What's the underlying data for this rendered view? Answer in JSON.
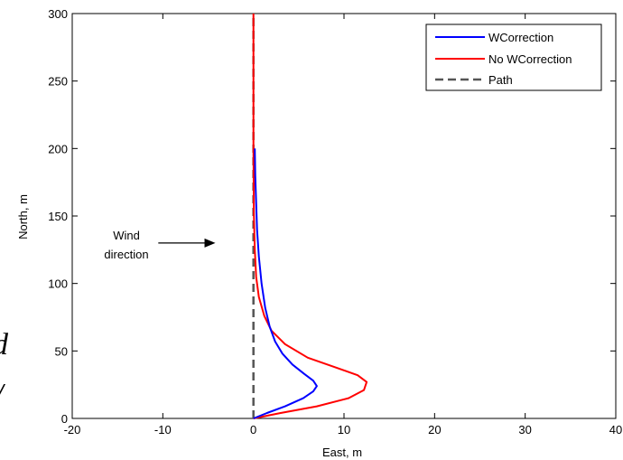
{
  "chart_data": {
    "type": "line",
    "title": "",
    "xlabel": "East, m",
    "ylabel": "North, m",
    "xlim": [
      -20,
      40
    ],
    "ylim": [
      0,
      300
    ],
    "x_ticks": [
      -20,
      -10,
      0,
      10,
      20,
      30,
      40
    ],
    "y_ticks": [
      0,
      50,
      100,
      150,
      200,
      250,
      300
    ],
    "grid": false,
    "legend_position": "top-right",
    "series": [
      {
        "name": "WCorrection",
        "color": "#0000ff",
        "style": "solid",
        "points": [
          [
            0,
            0
          ],
          [
            1.5,
            4
          ],
          [
            3.5,
            9
          ],
          [
            5.5,
            15
          ],
          [
            6.6,
            20
          ],
          [
            7.0,
            24
          ],
          [
            6.6,
            28
          ],
          [
            5.6,
            33
          ],
          [
            4.3,
            40
          ],
          [
            3.2,
            48
          ],
          [
            2.4,
            57
          ],
          [
            1.8,
            68
          ],
          [
            1.3,
            82
          ],
          [
            0.9,
            100
          ],
          [
            0.6,
            120
          ],
          [
            0.4,
            140
          ],
          [
            0.3,
            160
          ],
          [
            0.2,
            180
          ],
          [
            0.15,
            200
          ]
        ]
      },
      {
        "name": "No WCorrection",
        "color": "#ff0000",
        "style": "solid",
        "points": [
          [
            0,
            0
          ],
          [
            3,
            4
          ],
          [
            7,
            9
          ],
          [
            10.5,
            15
          ],
          [
            12.2,
            21
          ],
          [
            12.5,
            27
          ],
          [
            11.5,
            32
          ],
          [
            9,
            38
          ],
          [
            6,
            45
          ],
          [
            3.5,
            55
          ],
          [
            2,
            65
          ],
          [
            1.2,
            76
          ],
          [
            0.6,
            90
          ],
          [
            0.3,
            105
          ],
          [
            0.15,
            125
          ],
          [
            0.05,
            150
          ],
          [
            0,
            200
          ],
          [
            0,
            300
          ]
        ]
      },
      {
        "name": "Path",
        "color": "#555555",
        "style": "dashed",
        "points": [
          [
            0,
            0
          ],
          [
            0,
            300
          ]
        ]
      }
    ],
    "annotations": [
      {
        "text_lines": [
          "Wind",
          "direction"
        ],
        "arrow_from": [
          -10.5,
          130
        ],
        "arrow_to": [
          -4.2,
          130
        ]
      }
    ]
  },
  "edge_glyphs": [
    "d",
    "/"
  ]
}
